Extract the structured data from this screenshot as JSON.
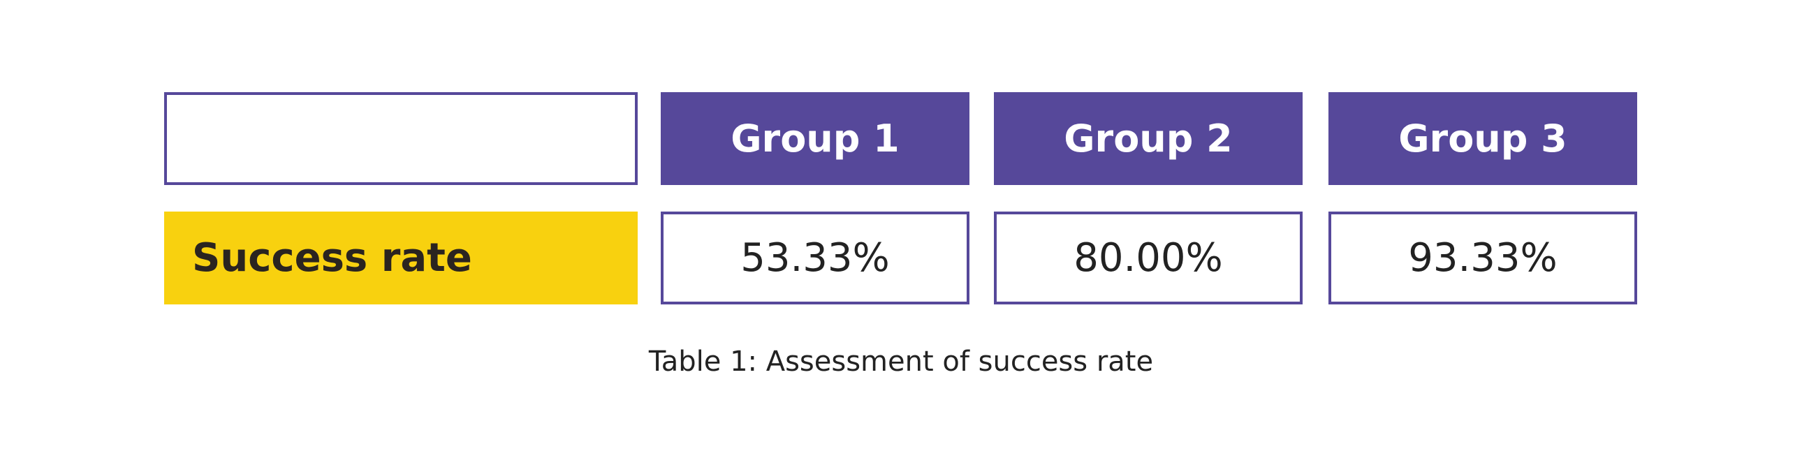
{
  "table": {
    "columns": [
      "Group 1",
      "Group 2",
      "Group 3"
    ],
    "rows": [
      {
        "label": "Success rate",
        "values": [
          "53.33%",
          "80.00%",
          "93.33%"
        ]
      }
    ]
  },
  "caption": "Table 1: Assessment of success rate"
}
